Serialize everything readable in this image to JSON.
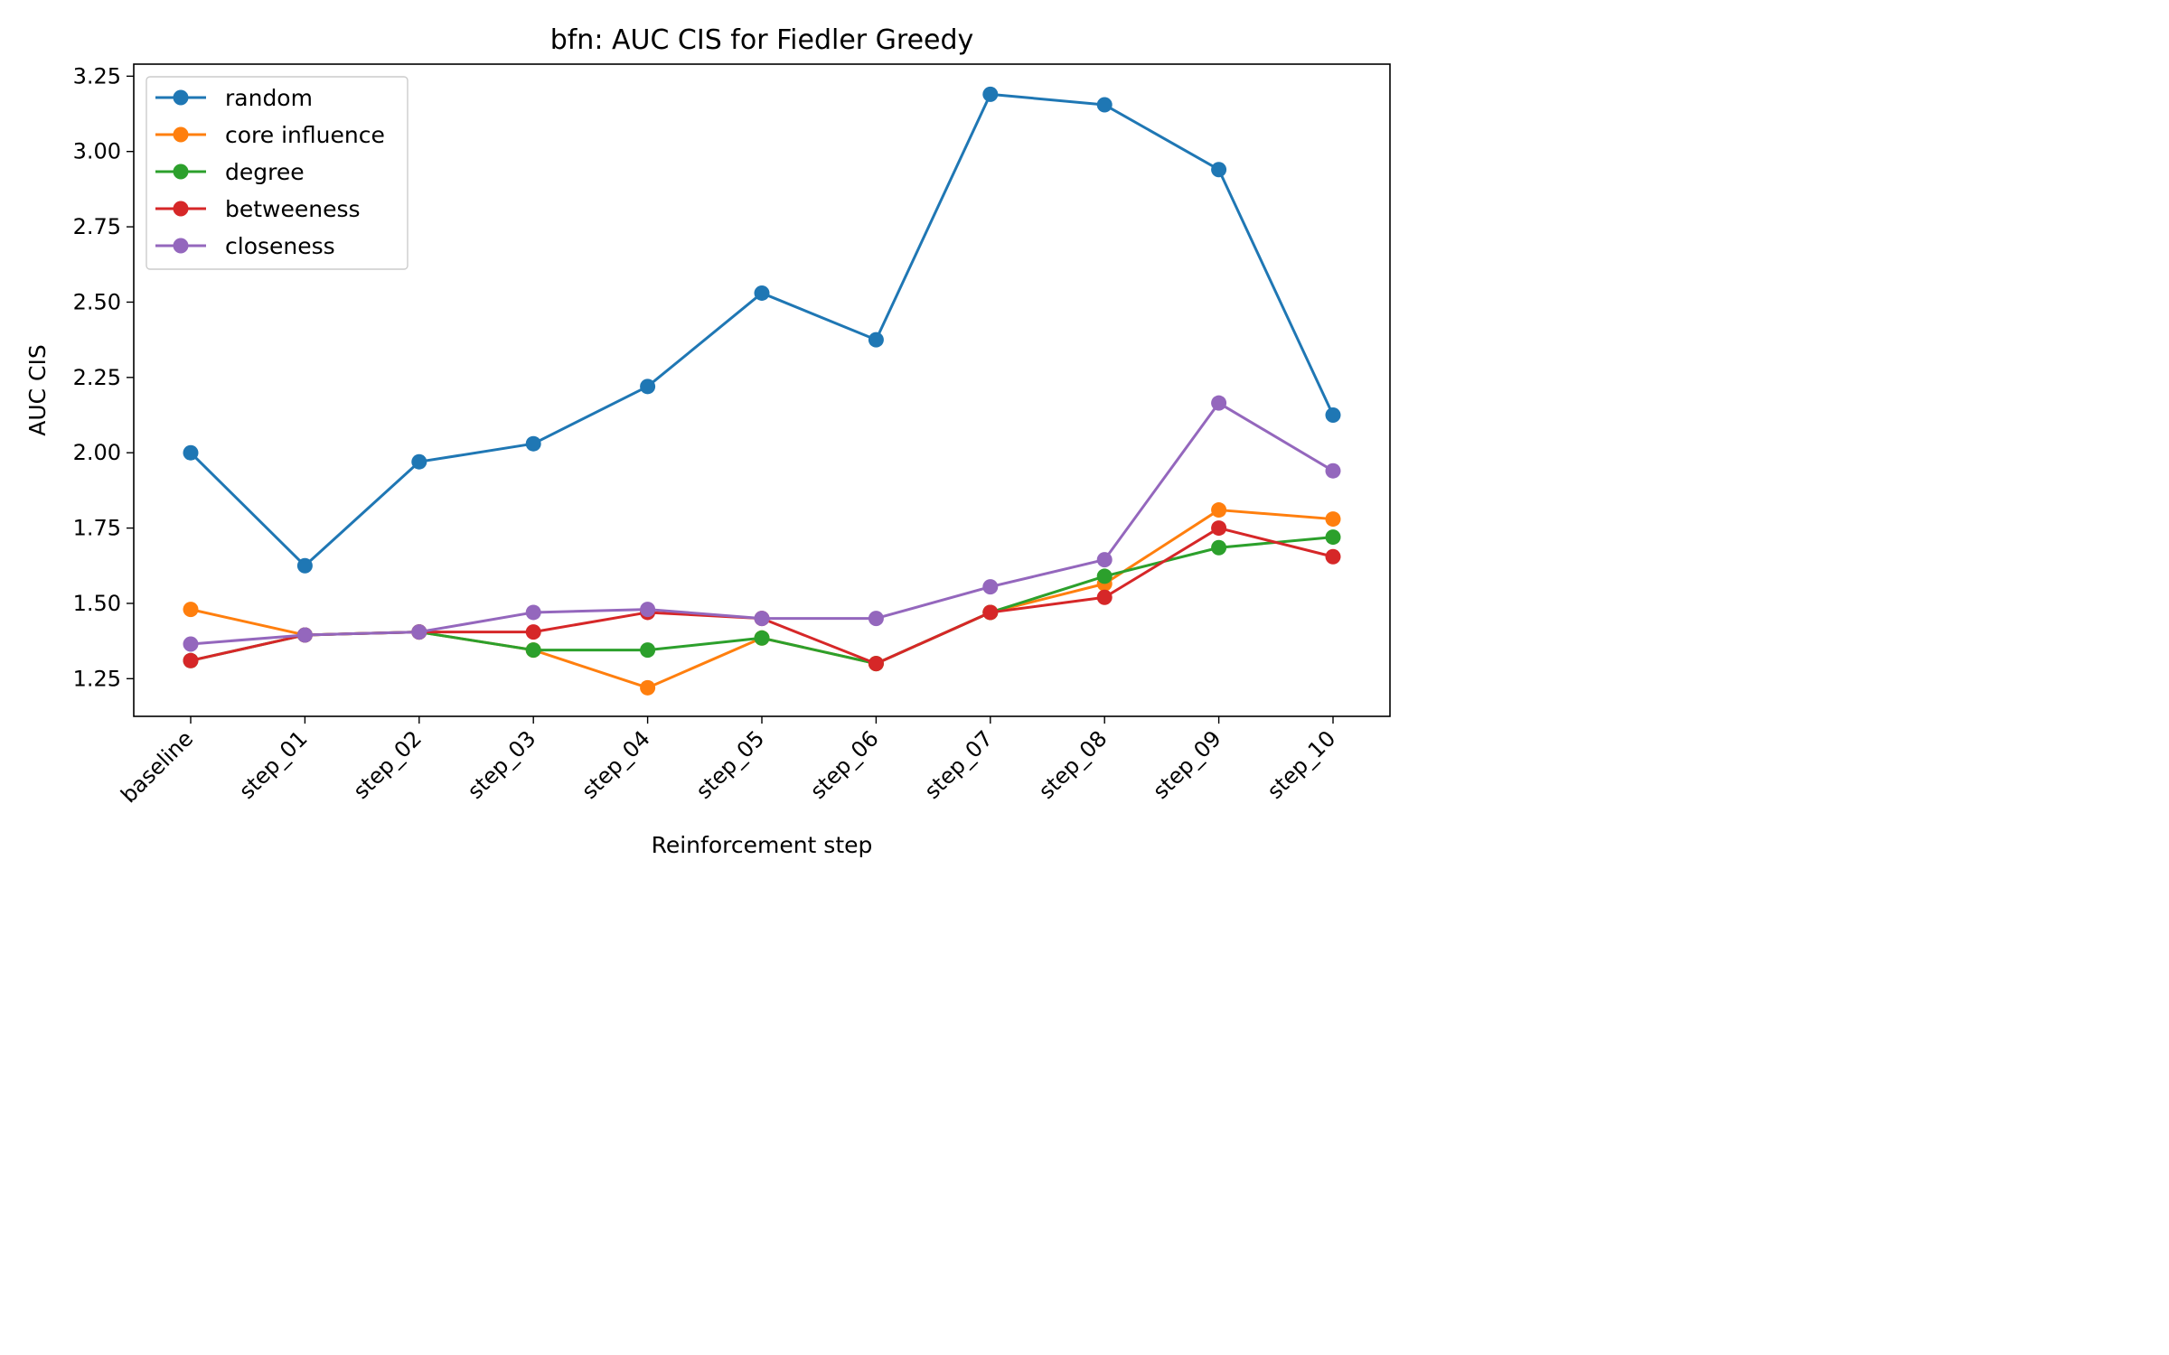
{
  "chart_data": {
    "type": "line",
    "title": "bfn: AUC CIS for Fiedler Greedy",
    "xlabel": "Reinforcement step",
    "ylabel": "AUC CIS",
    "categories": [
      "baseline",
      "step_01",
      "step_02",
      "step_03",
      "step_04",
      "step_05",
      "step_06",
      "step_07",
      "step_08",
      "step_09",
      "step_10"
    ],
    "ylim": [
      1.125,
      3.29
    ],
    "yticks": [
      1.25,
      1.5,
      1.75,
      2.0,
      2.25,
      2.5,
      2.75,
      3.0,
      3.25
    ],
    "ytick_labels": [
      "1.25",
      "1.50",
      "1.75",
      "2.00",
      "2.25",
      "2.50",
      "2.75",
      "3.00",
      "3.25"
    ],
    "legend_position": "top-left",
    "grid": false,
    "series": [
      {
        "name": "random",
        "color": "#1f77b4",
        "values": [
          2.0,
          1.625,
          1.97,
          2.03,
          2.22,
          2.53,
          2.375,
          3.19,
          3.155,
          2.94,
          2.125
        ]
      },
      {
        "name": "core influence",
        "color": "#ff7f0e",
        "values": [
          1.48,
          1.395,
          1.405,
          1.345,
          1.22,
          1.385,
          1.3,
          1.47,
          1.565,
          1.81,
          1.78
        ]
      },
      {
        "name": "degree",
        "color": "#2ca02c",
        "values": [
          1.31,
          1.395,
          1.405,
          1.345,
          1.345,
          1.385,
          1.3,
          1.47,
          1.59,
          1.685,
          1.72
        ]
      },
      {
        "name": "betweeness",
        "color": "#d62728",
        "values": [
          1.31,
          1.395,
          1.405,
          1.405,
          1.47,
          1.45,
          1.3,
          1.47,
          1.52,
          1.75,
          1.655
        ]
      },
      {
        "name": "closeness",
        "color": "#9467bd",
        "values": [
          1.365,
          1.395,
          1.405,
          1.47,
          1.48,
          1.45,
          1.45,
          1.555,
          1.645,
          2.165,
          1.94
        ]
      }
    ]
  }
}
